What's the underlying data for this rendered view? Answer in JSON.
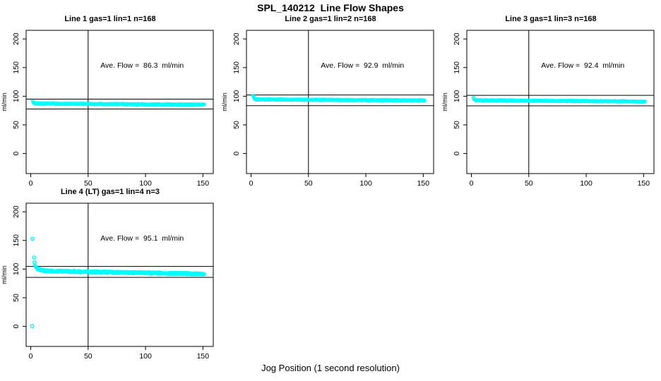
{
  "figure": {
    "title": "SPL_140212  Line Flow Shapes",
    "xlabel": "Jog Position (1 second resolution)",
    "background": "#FFFFFF",
    "text_color": "#000000",
    "marker_color": "#00FFFF"
  },
  "chart_data": [
    {
      "type": "scatter",
      "title": "Line 1 gas=1 lin=1 n=168",
      "annotation": "Ave. Flow =  86.3  ml/min",
      "stats": {
        "ave_flow_ml_min": 86.3,
        "gas": 1,
        "lin": 1,
        "n": 168
      },
      "ylabel": "ml/min",
      "xlim": [
        -4,
        159
      ],
      "ylim": [
        -35,
        215
      ],
      "xticks": [
        0,
        50,
        100,
        150
      ],
      "yticks": [
        0,
        50,
        100,
        150,
        200
      ],
      "vline_x": 50,
      "ref_lines_y": [
        94.9,
        77.7
      ],
      "marker_color": "#00FFFF",
      "flow_profile": {
        "x_start": 2,
        "x_end": 151,
        "initial": 90,
        "settled": 87,
        "final": 85.3,
        "noise": 0.9,
        "tau": 0.8,
        "n_points": 420
      },
      "outliers": []
    },
    {
      "type": "scatter",
      "title": "Line 2 gas=1 lin=2 n=168",
      "annotation": "Ave. Flow =  92.9  ml/min",
      "stats": {
        "ave_flow_ml_min": 92.9,
        "gas": 1,
        "lin": 2,
        "n": 168
      },
      "ylabel": "ml/min",
      "xlim": [
        -4,
        159
      ],
      "ylim": [
        -35,
        215
      ],
      "xticks": [
        0,
        50,
        100,
        150
      ],
      "yticks": [
        0,
        50,
        100,
        150,
        200
      ],
      "vline_x": 50,
      "ref_lines_y": [
        102.2,
        83.6
      ],
      "marker_color": "#00FFFF",
      "flow_profile": {
        "x_start": 2,
        "x_end": 151,
        "initial": 99,
        "settled": 94.3,
        "final": 92.6,
        "noise": 0.9,
        "tau": 0.8,
        "n_points": 420
      },
      "outliers": []
    },
    {
      "type": "scatter",
      "title": "Line 3 gas=1 lin=3 n=168",
      "annotation": "Ave. Flow =  92.4  ml/min",
      "stats": {
        "ave_flow_ml_min": 92.4,
        "gas": 1,
        "lin": 3,
        "n": 168
      },
      "ylabel": "ml/min",
      "xlim": [
        -4,
        159
      ],
      "ylim": [
        -35,
        215
      ],
      "xticks": [
        0,
        50,
        100,
        150
      ],
      "yticks": [
        0,
        50,
        100,
        150,
        200
      ],
      "vline_x": 50,
      "ref_lines_y": [
        101.6,
        83.2
      ],
      "marker_color": "#00FFFF",
      "flow_profile": {
        "x_start": 2,
        "x_end": 151,
        "initial": 96,
        "settled": 92.9,
        "final": 90.7,
        "noise": 0.9,
        "tau": 0.8,
        "n_points": 420
      },
      "outliers": []
    },
    {
      "type": "scatter",
      "title": "Line 4 (LT) gas=1 lin=4 n=3",
      "annotation": "Ave. Flow =  95.1  ml/min",
      "stats": {
        "ave_flow_ml_min": 95.1,
        "gas": 1,
        "lin": 4,
        "n": 3
      },
      "ylabel": "ml/min",
      "xlim": [
        -4,
        159
      ],
      "ylim": [
        -35,
        215
      ],
      "xticks": [
        0,
        50,
        100,
        150
      ],
      "yticks": [
        0,
        50,
        100,
        150,
        200
      ],
      "vline_x": 50,
      "ref_lines_y": [
        104.6,
        85.6
      ],
      "marker_color": "#00FFFF",
      "flow_profile": {
        "x_start": 3.5,
        "x_end": 151,
        "initial": 105,
        "settled": 97,
        "final": 91.5,
        "noise": 1.7,
        "tau": 3,
        "n_points": 460
      },
      "outliers": [
        [
          1.5,
          153
        ],
        [
          2.8,
          120
        ],
        [
          3.2,
          112
        ],
        [
          1.2,
          0.5
        ]
      ]
    }
  ]
}
